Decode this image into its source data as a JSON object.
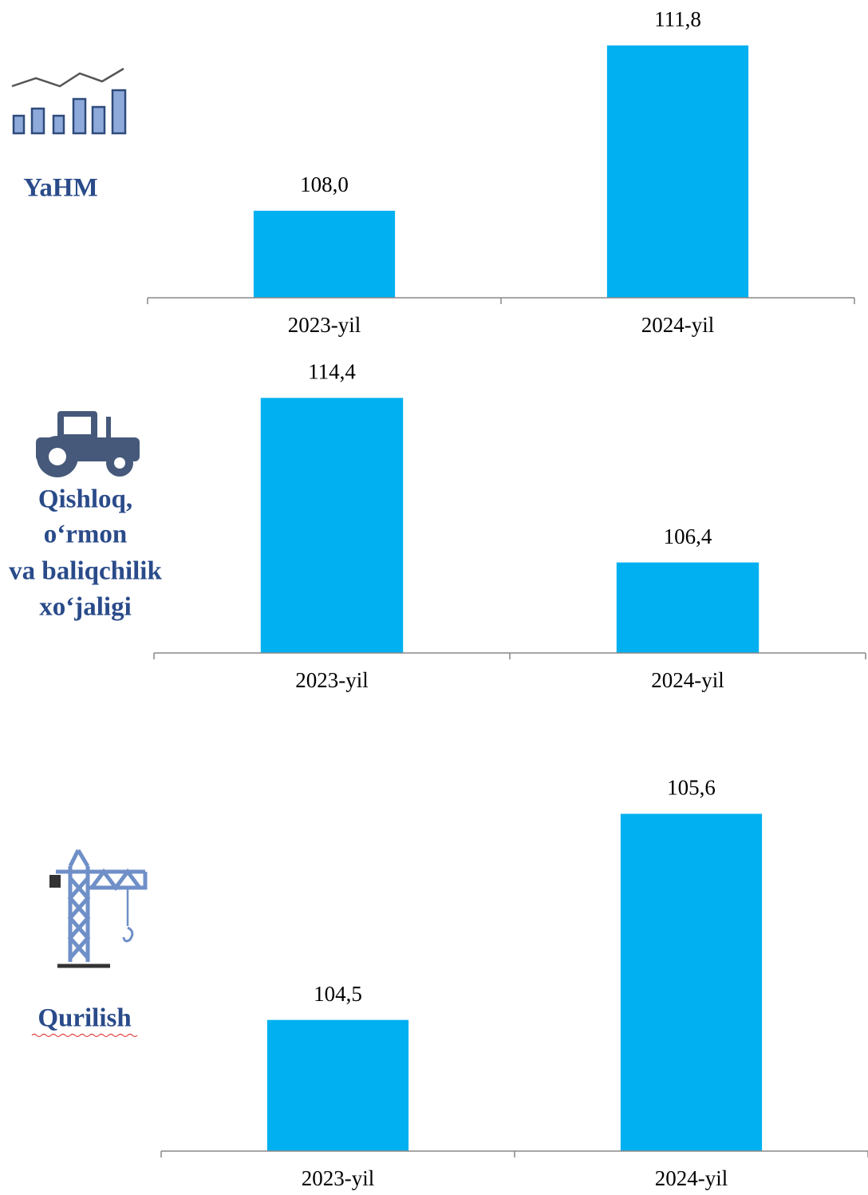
{
  "chart_data": [
    {
      "type": "bar",
      "title_lines": [
        "YaHM"
      ],
      "categories": [
        "2023-yil",
        "2024-yil"
      ],
      "values": [
        108.0,
        111.8
      ],
      "value_labels": [
        "108,0",
        "111,8"
      ],
      "color": "#00b0f0",
      "ylim": [
        106,
        112
      ]
    },
    {
      "type": "bar",
      "title_lines": [
        "Qishloq,",
        "o‘rmon",
        "va baliqchilik",
        "xo‘jaligi"
      ],
      "categories": [
        "2023-yil",
        "2024-yil"
      ],
      "values": [
        114.4,
        106.4
      ],
      "value_labels": [
        "114,4",
        "106,4"
      ],
      "color": "#00b0f0",
      "ylim": [
        102,
        115
      ]
    },
    {
      "type": "bar",
      "title_lines": [
        "Qurilish"
      ],
      "categories": [
        "2023-yil",
        "2024-yil"
      ],
      "values": [
        104.5,
        105.6
      ],
      "value_labels": [
        "104,5",
        "105,6"
      ],
      "color": "#00b0f0",
      "ylim": [
        103.8,
        105.7
      ]
    }
  ]
}
